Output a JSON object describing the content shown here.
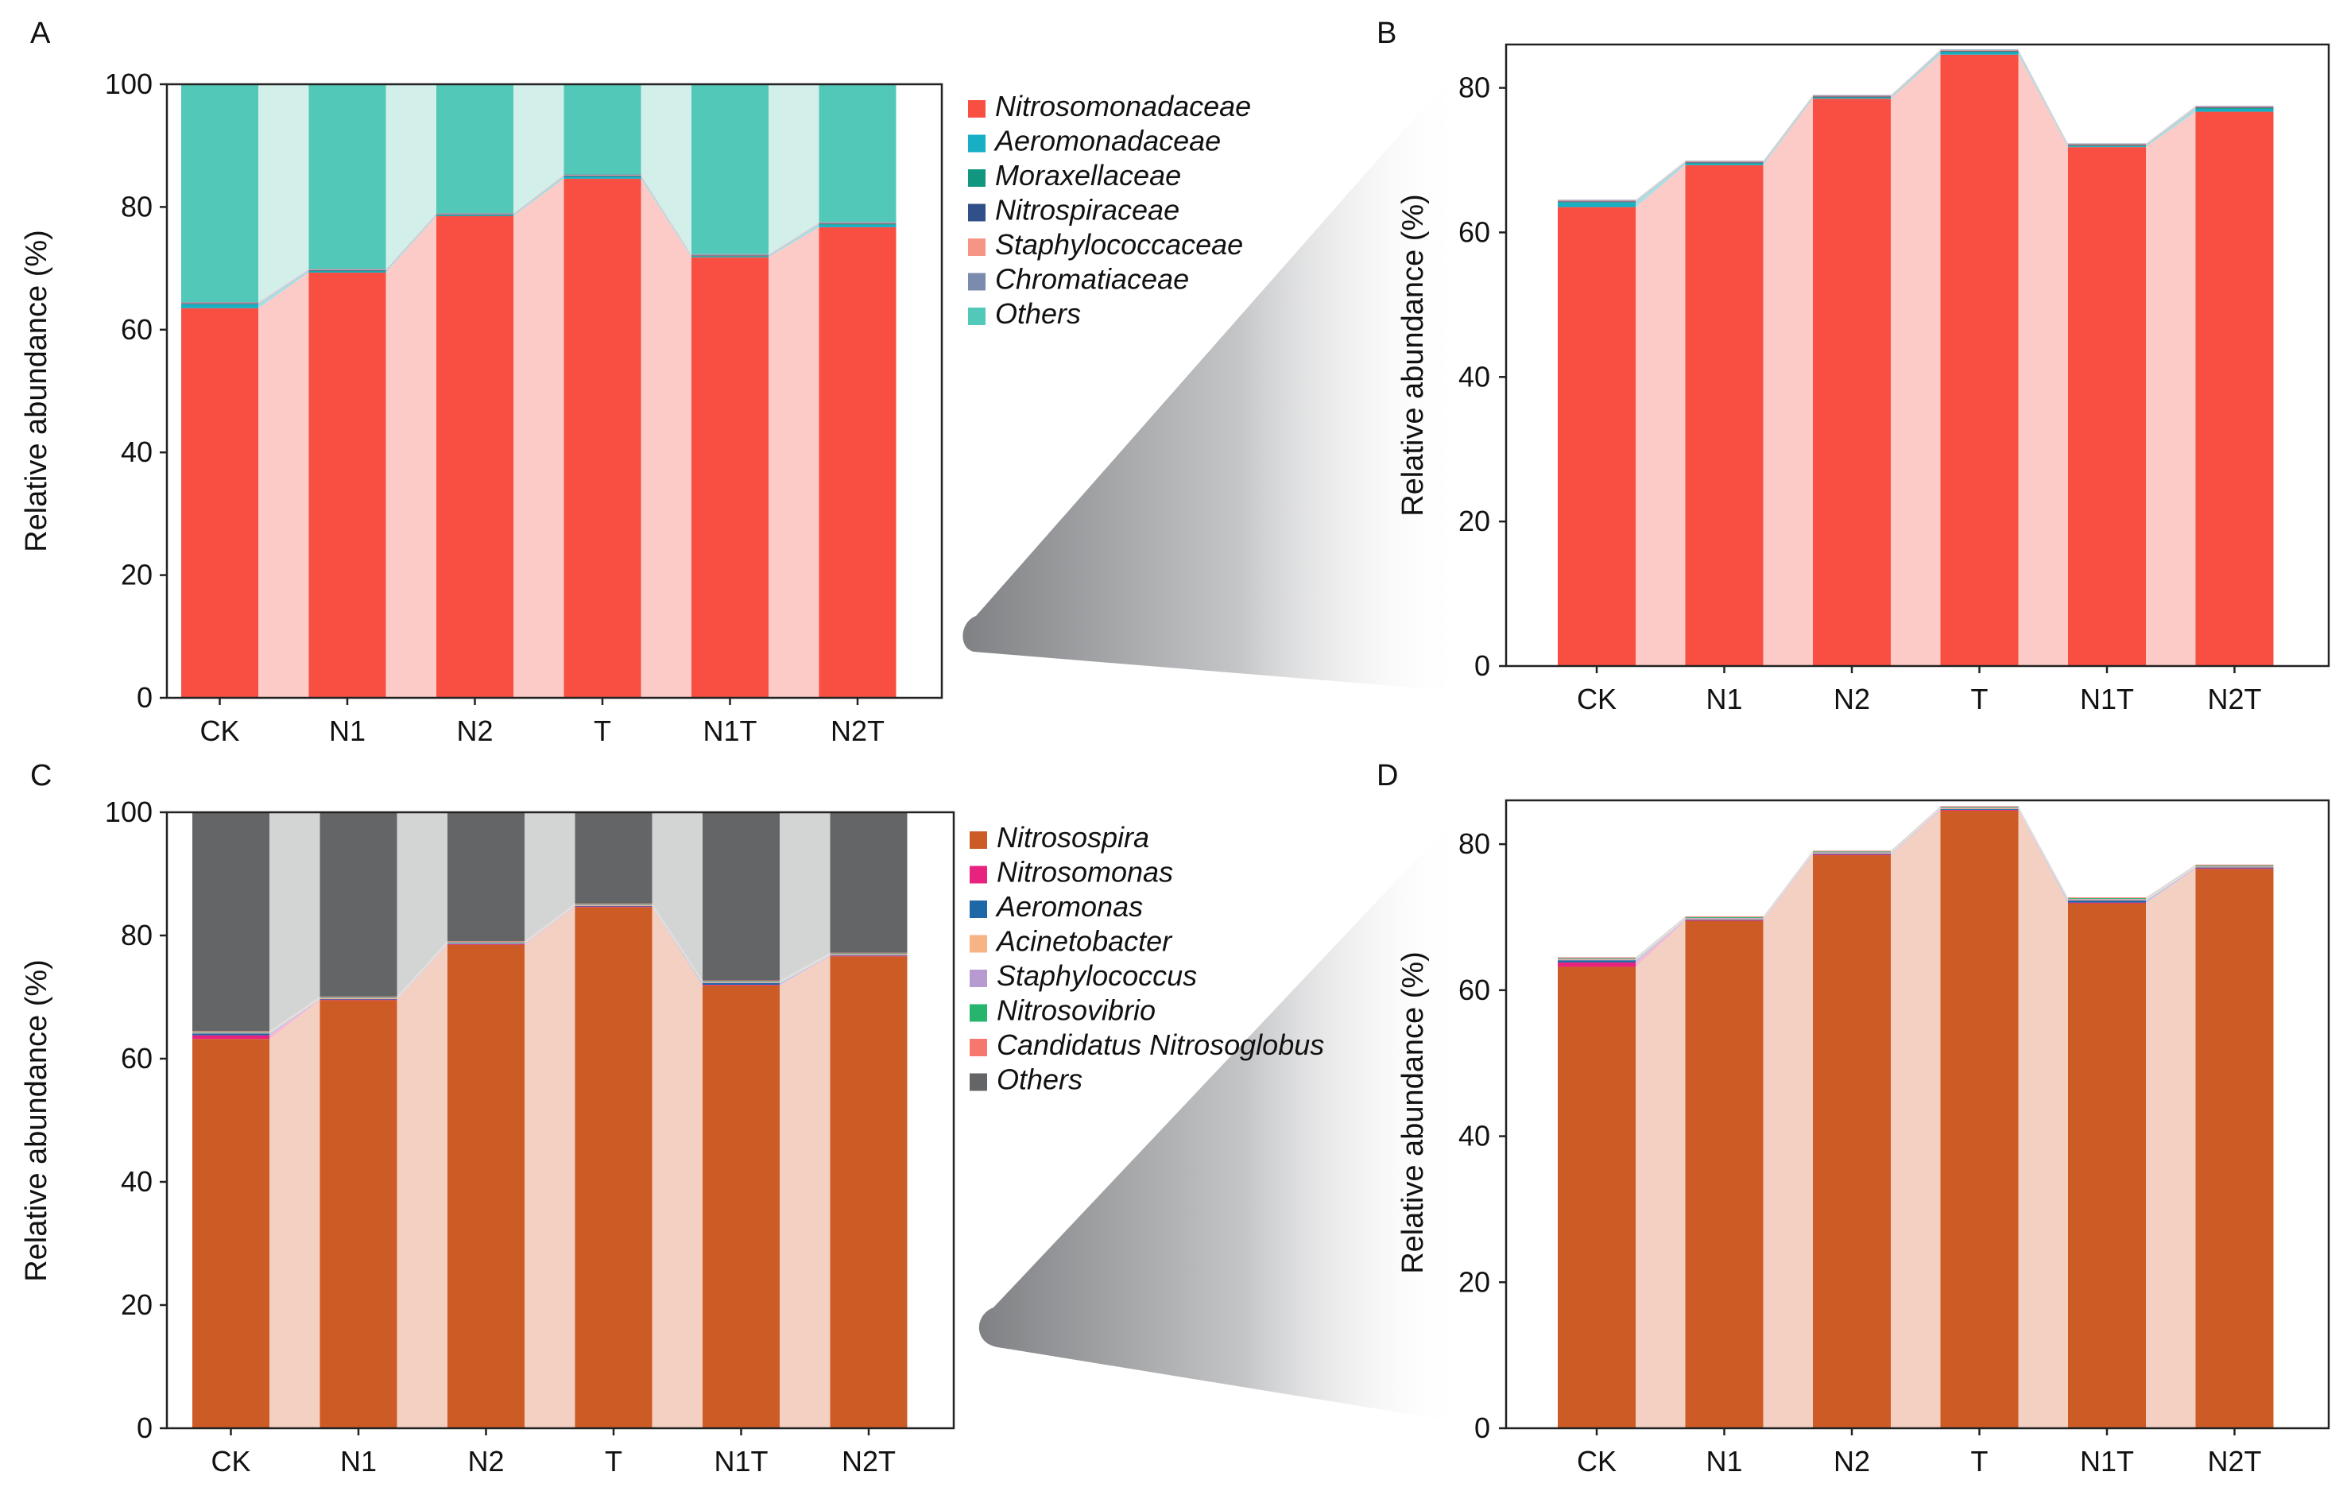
{
  "chart_data": [
    {
      "panel_label": "A",
      "type": "bar",
      "stacked": true,
      "connectors": true,
      "categories": [
        "CK",
        "N1",
        "N2",
        "T",
        "N1T",
        "N2T"
      ],
      "ylabel": "Relative abundance (%)",
      "ylim": [
        0,
        100
      ],
      "yticks": [
        0,
        20,
        40,
        60,
        80,
        100
      ],
      "legend_position": "right",
      "series": [
        {
          "name": "Nitrosomonadaceae",
          "color": "#F94F43",
          "connector_color": "#FCCBC7",
          "values": [
            63.5,
            69.3,
            78.5,
            84.6,
            71.8,
            76.7
          ]
        },
        {
          "name": "Aeromonadaceae",
          "color": "#16AFC4",
          "connector_color": "#A8DEE6",
          "values": [
            0.6,
            0.2,
            0.1,
            0.3,
            0.1,
            0.4
          ]
        },
        {
          "name": "Moraxellaceae",
          "color": "#11977F",
          "connector_color": "#A6D5CB",
          "values": [
            0.1,
            0.1,
            0.1,
            0.1,
            0.1,
            0.1
          ]
        },
        {
          "name": "Nitrospiraceae",
          "color": "#30508A",
          "connector_color": "#AEBBD2",
          "values": [
            0.1,
            0.1,
            0.1,
            0.1,
            0.1,
            0.1
          ]
        },
        {
          "name": "Staphylococcaceae",
          "color": "#F69585",
          "connector_color": "#FBD6CF",
          "values": [
            0.1,
            0.1,
            0.1,
            0.1,
            0.1,
            0.1
          ]
        },
        {
          "name": "Chromatiaceae",
          "color": "#7B8BAD",
          "connector_color": "#CDD3E0",
          "values": [
            0.1,
            0.1,
            0.1,
            0.1,
            0.1,
            0.1
          ]
        },
        {
          "name": "Others",
          "color": "#52C8B8",
          "connector_color": "#D3EFEA",
          "values": [
            35.5,
            30.1,
            21.0,
            14.7,
            27.7,
            22.5
          ]
        }
      ]
    },
    {
      "panel_label": "B",
      "type": "bar",
      "stacked": true,
      "connectors": true,
      "categories": [
        "CK",
        "N1",
        "N2",
        "T",
        "N1T",
        "N2T"
      ],
      "ylabel": "Relative abundance (%)",
      "ylim": [
        0,
        86
      ],
      "yticks": [
        0,
        20,
        40,
        60,
        80
      ],
      "series": [
        {
          "name": "Nitrosomonadaceae",
          "color": "#F94F43",
          "connector_color": "#FCCBC7",
          "values": [
            63.5,
            69.3,
            78.5,
            84.6,
            71.8,
            76.7
          ]
        },
        {
          "name": "Aeromonadaceae",
          "color": "#16AFC4",
          "connector_color": "#A8DEE6",
          "values": [
            0.6,
            0.2,
            0.1,
            0.3,
            0.1,
            0.4
          ]
        },
        {
          "name": "Moraxellaceae",
          "color": "#11977F",
          "connector_color": "#A6D5CB",
          "values": [
            0.1,
            0.1,
            0.1,
            0.1,
            0.1,
            0.1
          ]
        },
        {
          "name": "Nitrospiraceae",
          "color": "#30508A",
          "connector_color": "#AEBBD2",
          "values": [
            0.1,
            0.1,
            0.1,
            0.1,
            0.1,
            0.1
          ]
        },
        {
          "name": "Staphylococcaceae",
          "color": "#F69585",
          "connector_color": "#FBD6CF",
          "values": [
            0.1,
            0.1,
            0.1,
            0.1,
            0.1,
            0.1
          ]
        },
        {
          "name": "Chromatiaceae",
          "color": "#7B8BAD",
          "connector_color": "#CDD3E0",
          "values": [
            0.1,
            0.1,
            0.1,
            0.1,
            0.1,
            0.1
          ]
        }
      ]
    },
    {
      "panel_label": "C",
      "type": "bar",
      "stacked": true,
      "connectors": true,
      "categories": [
        "CK",
        "N1",
        "N2",
        "T",
        "N1T",
        "N2T"
      ],
      "ylabel": "Relative abundance (%)",
      "ylim": [
        0,
        100
      ],
      "yticks": [
        0,
        20,
        40,
        60,
        80,
        100
      ],
      "legend_position": "right",
      "series": [
        {
          "name": "Nitrosospira",
          "color": "#CD5B26",
          "connector_color": "#F4D0C3",
          "values": [
            63.2,
            69.5,
            78.5,
            84.6,
            71.9,
            76.6
          ]
        },
        {
          "name": "Nitrosomonas",
          "color": "#E8227F",
          "connector_color": "#F6B8D2",
          "values": [
            0.6,
            0.1,
            0.1,
            0.1,
            0.1,
            0.1
          ]
        },
        {
          "name": "Aeromonas",
          "color": "#1F68A8",
          "connector_color": "#B3CAE0",
          "values": [
            0.3,
            0.1,
            0.1,
            0.1,
            0.3,
            0.1
          ]
        },
        {
          "name": "Acinetobacter",
          "color": "#F8B385",
          "connector_color": "#FCE2D1",
          "values": [
            0.1,
            0.1,
            0.1,
            0.1,
            0.1,
            0.1
          ]
        },
        {
          "name": "Staphylococcus",
          "color": "#B69AD0",
          "connector_color": "#E3D8EE",
          "values": [
            0.1,
            0.1,
            0.1,
            0.1,
            0.1,
            0.1
          ]
        },
        {
          "name": "Nitrosovibrio",
          "color": "#27B56D",
          "connector_color": "#B3E4CA",
          "values": [
            0.1,
            0.1,
            0.1,
            0.1,
            0.1,
            0.1
          ]
        },
        {
          "name": "Candidatus Nitrosoglobus",
          "color": "#F5776D",
          "connector_color": "#FBCFCB",
          "values": [
            0.1,
            0.1,
            0.1,
            0.1,
            0.1,
            0.1
          ]
        },
        {
          "name": "Others",
          "color": "#636566",
          "connector_color": "#D3D5D5",
          "values": [
            35.5,
            29.9,
            20.9,
            14.8,
            27.3,
            22.8
          ]
        }
      ]
    },
    {
      "panel_label": "D",
      "type": "bar",
      "stacked": true,
      "connectors": true,
      "categories": [
        "CK",
        "N1",
        "N2",
        "T",
        "N1T",
        "N2T"
      ],
      "ylabel": "Relative abundance (%)",
      "ylim": [
        0,
        86
      ],
      "yticks": [
        0,
        20,
        40,
        60,
        80
      ],
      "series": [
        {
          "name": "Nitrosospira",
          "color": "#CD5B26",
          "connector_color": "#F4D0C3",
          "values": [
            63.2,
            69.5,
            78.5,
            84.6,
            71.9,
            76.6
          ]
        },
        {
          "name": "Nitrosomonas",
          "color": "#E8227F",
          "connector_color": "#F6B8D2",
          "values": [
            0.6,
            0.1,
            0.1,
            0.1,
            0.1,
            0.1
          ]
        },
        {
          "name": "Aeromonas",
          "color": "#1F68A8",
          "connector_color": "#B3CAE0",
          "values": [
            0.3,
            0.1,
            0.1,
            0.1,
            0.3,
            0.1
          ]
        },
        {
          "name": "Acinetobacter",
          "color": "#F8B385",
          "connector_color": "#FCE2D1",
          "values": [
            0.1,
            0.1,
            0.1,
            0.1,
            0.1,
            0.1
          ]
        },
        {
          "name": "Staphylococcus",
          "color": "#B69AD0",
          "connector_color": "#E3D8EE",
          "values": [
            0.1,
            0.1,
            0.1,
            0.1,
            0.1,
            0.1
          ]
        },
        {
          "name": "Nitrosovibrio",
          "color": "#27B56D",
          "connector_color": "#B3E4CA",
          "values": [
            0.1,
            0.1,
            0.1,
            0.1,
            0.1,
            0.1
          ]
        },
        {
          "name": "Candidatus Nitrosoglobus",
          "color": "#F5776D",
          "connector_color": "#FBCFCB",
          "values": [
            0.1,
            0.1,
            0.1,
            0.1,
            0.1,
            0.1
          ]
        }
      ]
    }
  ]
}
